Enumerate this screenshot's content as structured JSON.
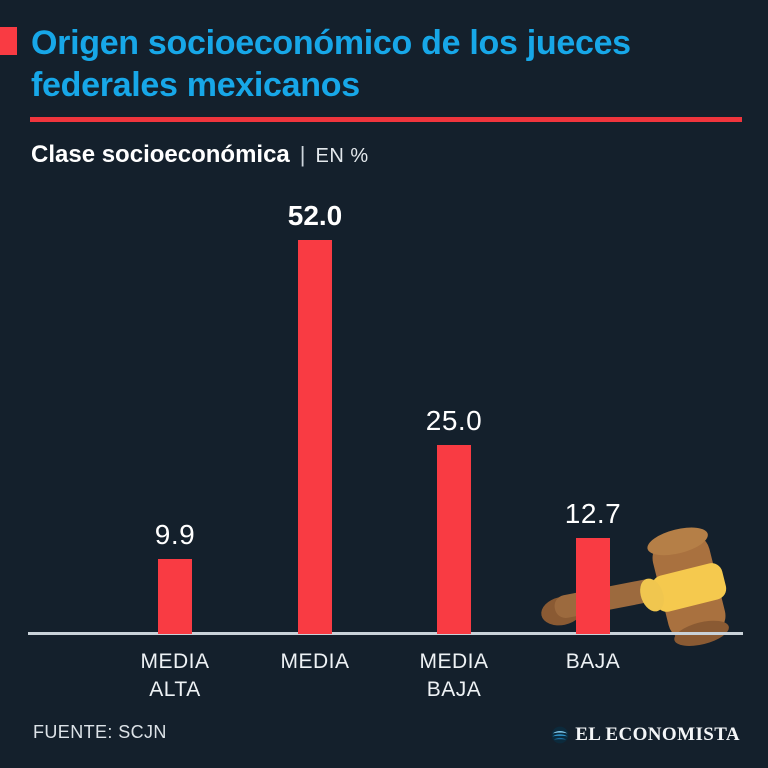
{
  "header": {
    "title": "Origen socioeconómico de los jueces federales mexicanos",
    "subtitle_bold": "Clase socioeconómica",
    "subtitle_sep": "|",
    "subtitle_unit": "EN %"
  },
  "chart_data": {
    "type": "bar",
    "title": "Origen socioeconómico de los jueces federales mexicanos",
    "subtitle": "Clase socioeconómica",
    "unit": "EN %",
    "categories": [
      "MEDIA ALTA",
      "MEDIA",
      "MEDIA BAJA",
      "BAJA"
    ],
    "values": [
      9.9,
      52.0,
      25.0,
      12.7
    ],
    "ylim": [
      0,
      57
    ],
    "grid": false,
    "legend": false,
    "bar_color": "#f93b43",
    "bars": [
      {
        "label_line1": "MEDIA",
        "label_line2": "ALTA",
        "value": 9.9,
        "value_label": "9.9",
        "emphasized": false
      },
      {
        "label_line1": "MEDIA",
        "label_line2": "",
        "value": 52.0,
        "value_label": "52.0",
        "emphasized": true
      },
      {
        "label_line1": "MEDIA",
        "label_line2": "BAJA",
        "value": 25.0,
        "value_label": "25.0",
        "emphasized": false
      },
      {
        "label_line1": "BAJA",
        "label_line2": "",
        "value": 12.7,
        "value_label": "12.7",
        "emphasized": false
      }
    ]
  },
  "footer": {
    "source": "FUENTE: SCJN",
    "brand": "EL ECONOMISTA"
  },
  "colors": {
    "background": "#14202c",
    "accent_red": "#f93b43",
    "title_cyan": "#17a7e8",
    "axis_line": "#c9d2d9",
    "text": "#ffffff"
  },
  "icons": {
    "gavel": "gavel-icon",
    "brand_globe": "globe-icon"
  }
}
